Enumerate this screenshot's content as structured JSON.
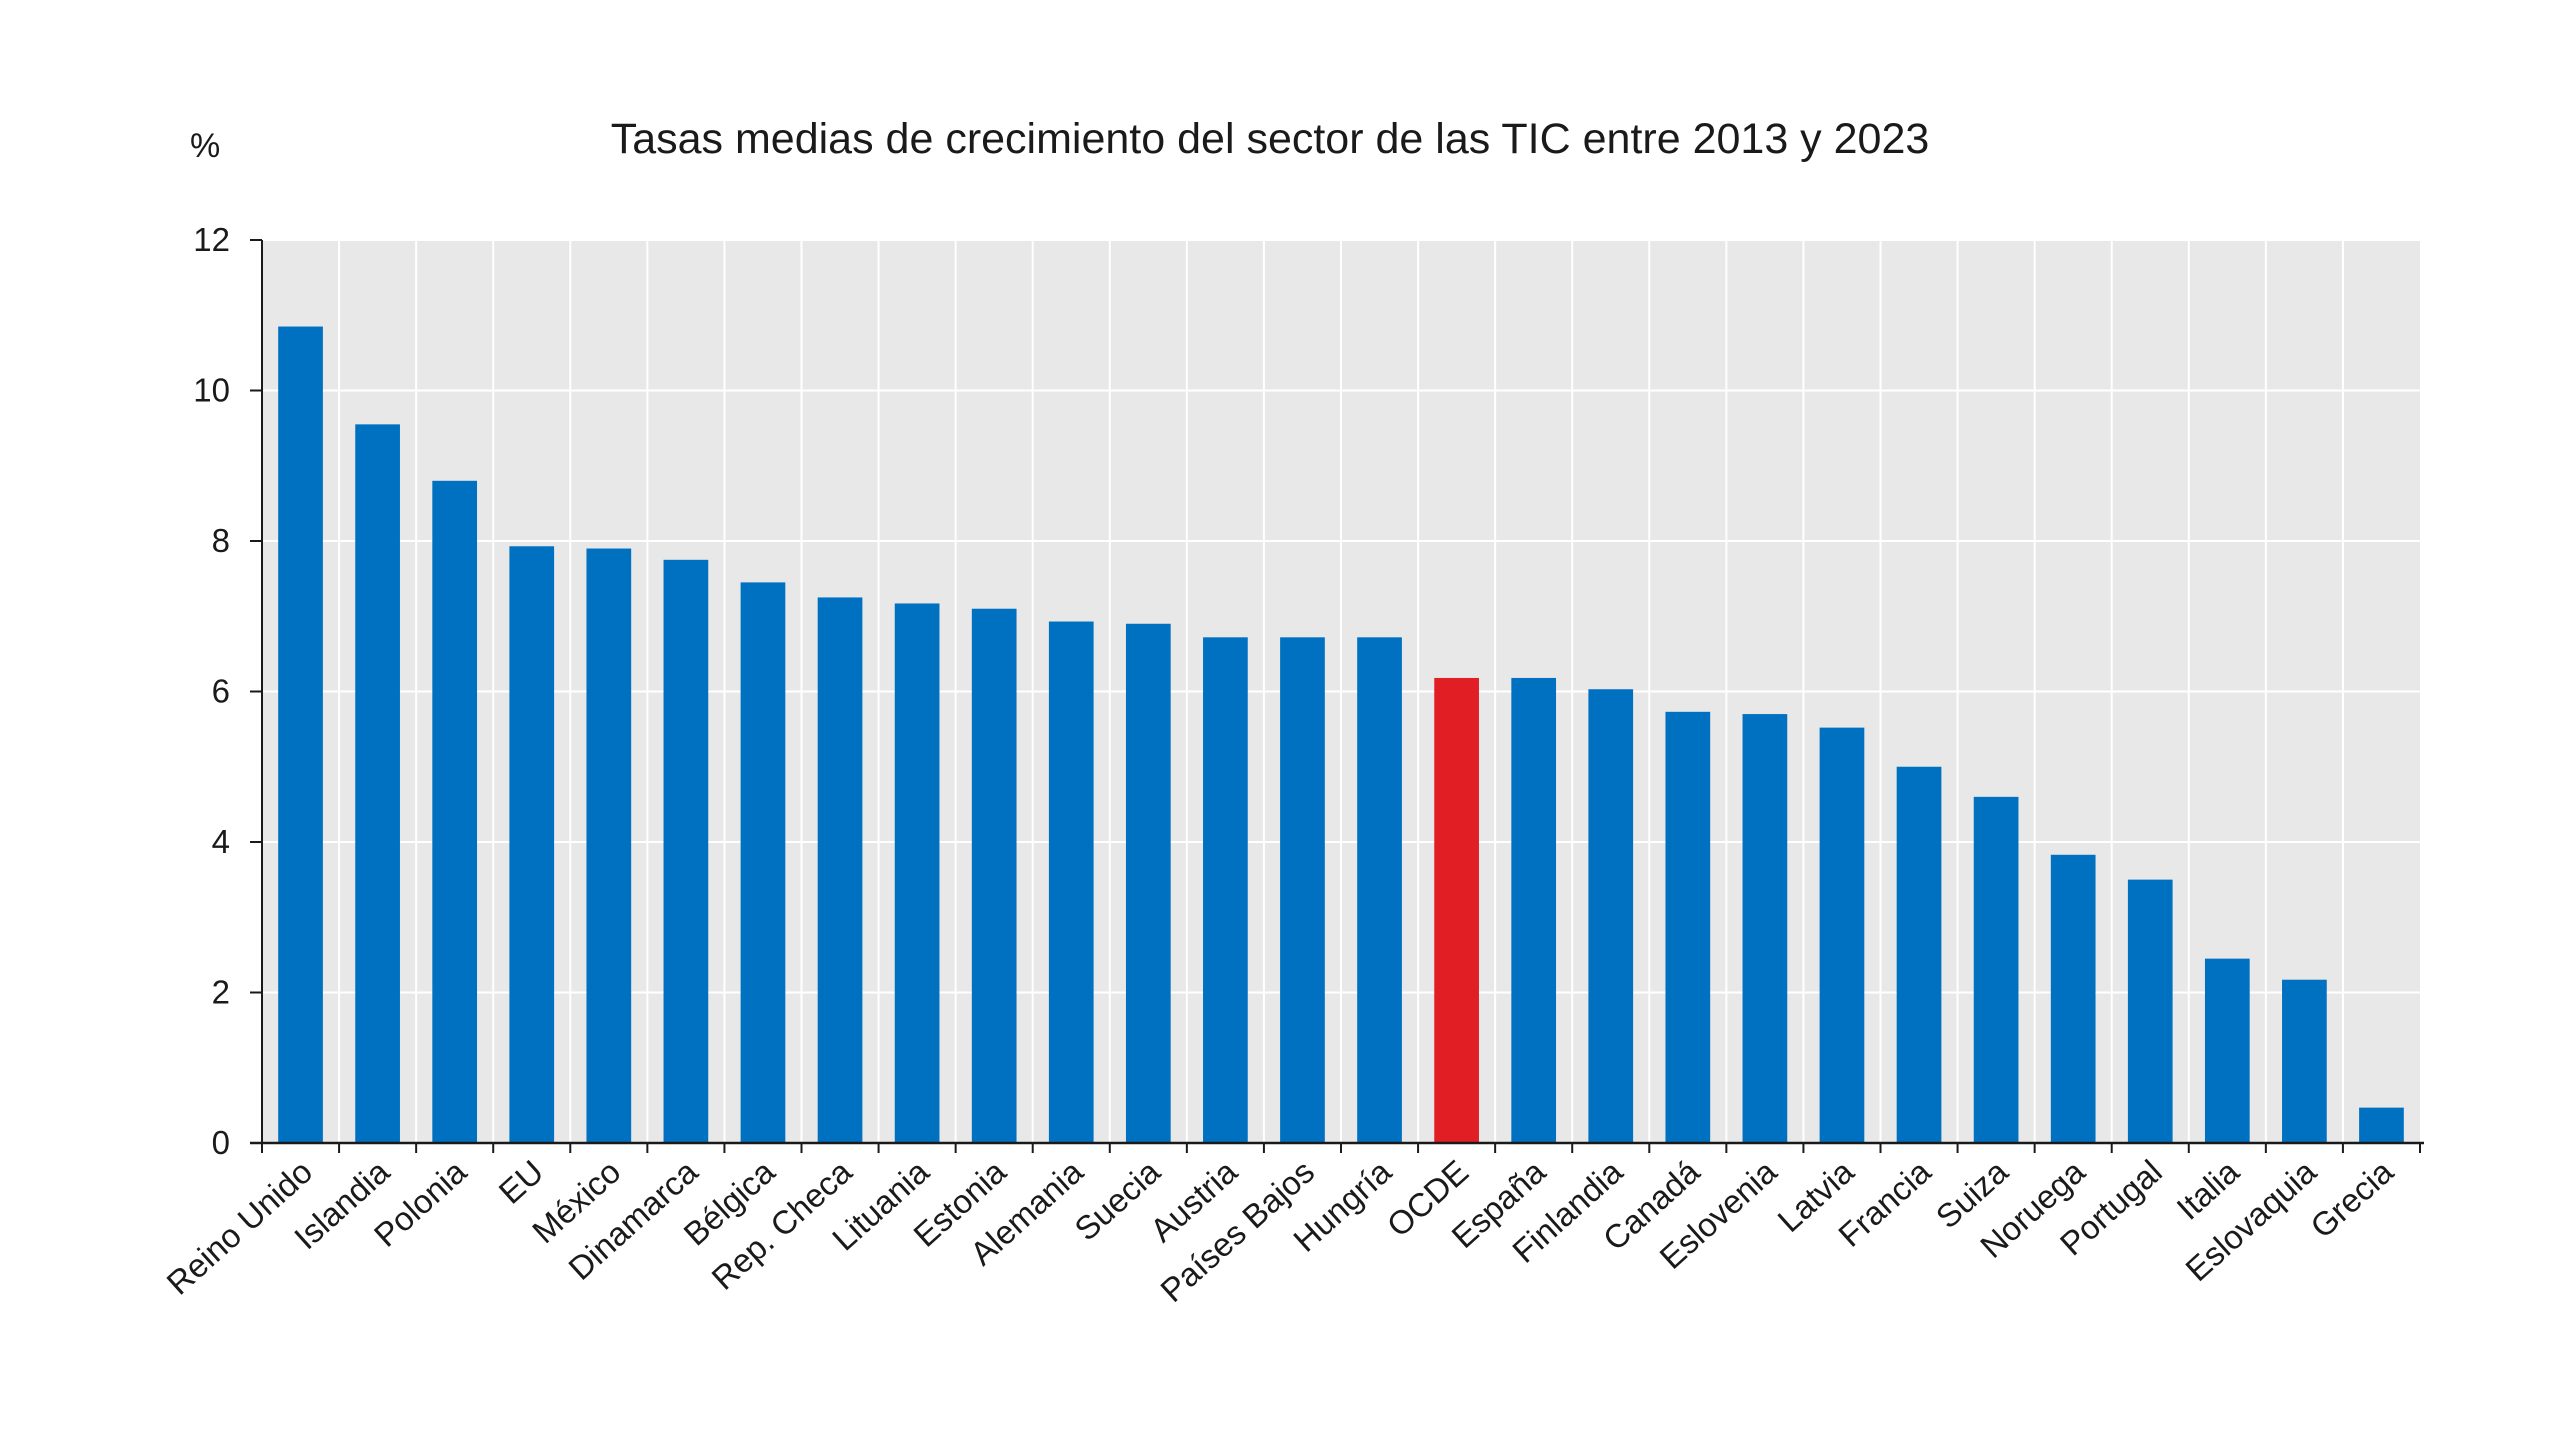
{
  "chart_data": {
    "type": "bar",
    "title": "Tasas medias de crecimiento del sector de las TIC  entre 2013 y 2023",
    "ylabel": "%",
    "xlabel": "",
    "ylim": [
      0,
      12
    ],
    "yticks": [
      0,
      2,
      4,
      6,
      8,
      10,
      12
    ],
    "grid": true,
    "colors": {
      "default": "#0070c0",
      "highlight": "#e01e23",
      "plot_background": "#e8e8e8",
      "gridline": "#ffffff",
      "axis": "#1a1a1a"
    },
    "highlight_category": "OCDE",
    "categories": [
      "Reino Unido",
      "Islandia",
      "Polonia",
      "EU",
      "México",
      "Dinamarca",
      "Bélgica",
      "Rep. Checa",
      "Lituania",
      "Estonia",
      "Alemania",
      "Suecia",
      "Austria",
      "Países Bajos",
      "Hungría",
      "OCDE",
      "España",
      "Finlandia",
      "Canadá",
      "Eslovenia",
      "Latvia",
      "Francia",
      "Suiza",
      "Noruega",
      "Portugal",
      "Italia",
      "Eslovaquia",
      "Grecia"
    ],
    "values": [
      10.85,
      9.55,
      8.8,
      7.93,
      7.9,
      7.75,
      7.45,
      7.25,
      7.17,
      7.1,
      6.93,
      6.9,
      6.72,
      6.72,
      6.72,
      6.18,
      6.18,
      6.03,
      5.73,
      5.7,
      5.52,
      5.0,
      4.6,
      3.83,
      3.5,
      2.45,
      2.17,
      0.47
    ]
  }
}
